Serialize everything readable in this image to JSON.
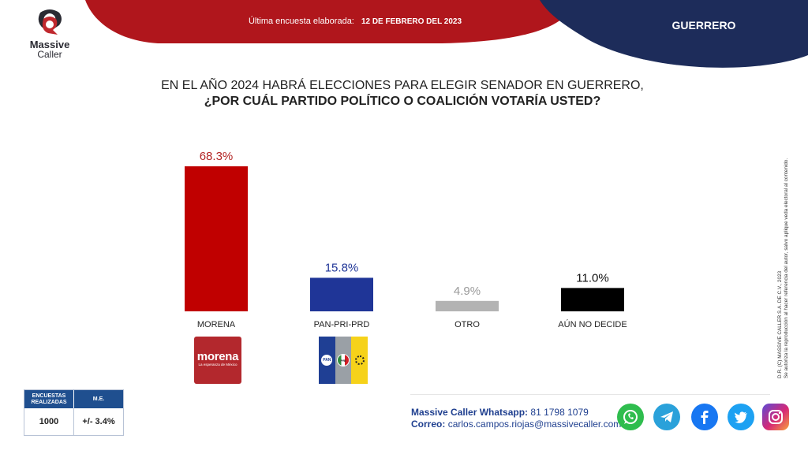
{
  "brand": {
    "line1": "Massive",
    "line2": "Caller"
  },
  "header": {
    "survey_label": "Última encuesta elaborada:",
    "survey_date": "12 DE FEBRERO DEL 2023",
    "state": "GUERRERO",
    "colors": {
      "red": "#b0161c",
      "navy": "#1d2c5a"
    }
  },
  "question": {
    "line1": "EN EL AÑO 2024 HABRÁ ELECCIONES PARA ELEGIR SENADOR EN GUERRERO,",
    "line2": "¿POR CUÁL PARTIDO POLÍTICO O COALICIÓN VOTARÍA USTED?"
  },
  "chart_data": {
    "type": "bar",
    "categories": [
      "MORENA",
      "PAN-PRI-PRD",
      "OTRO",
      "AÚN NO DECIDE"
    ],
    "values": [
      68.3,
      15.8,
      4.9,
      11.0
    ],
    "value_labels": [
      "68.3%",
      "15.8%",
      "4.9%",
      "11.0%"
    ],
    "colors": [
      "#c00000",
      "#1f3597",
      "#b3b3b3",
      "#000000"
    ],
    "label_colors": [
      "#b22222",
      "#1f3597",
      "#9a9a9a",
      "#111111"
    ],
    "title": "",
    "xlabel": "",
    "ylabel": "",
    "ylim": [
      0,
      68.3
    ],
    "grid": false,
    "legend": "none"
  },
  "party_logos": {
    "morena": {
      "name": "morena",
      "tagline": "La esperanza de México"
    },
    "coalition": {
      "pan": "PAN",
      "pri": "PRI"
    }
  },
  "side_note": {
    "line1": "D.R. (C) MASSIVE CALLER S.A. DE C.V., 2023",
    "line2": "Se autoriza la reproducción al hacer referencia del autor, salvo aplique veda electoral al contenido."
  },
  "sample": {
    "h1": "ENCUESTAS REALIZADAS",
    "h2": "M.E.",
    "v1": "1000",
    "v2": "+/- 3.4%"
  },
  "contact": {
    "whatsapp_label": "Massive Caller Whatsapp:",
    "whatsapp_number": "81 1798 1079",
    "email_label": "Correo:",
    "email": "carlos.campos.riojas@massivecaller.com"
  },
  "social_icons": [
    "whatsapp-icon",
    "telegram-icon",
    "facebook-icon",
    "twitter-icon",
    "instagram-icon"
  ]
}
